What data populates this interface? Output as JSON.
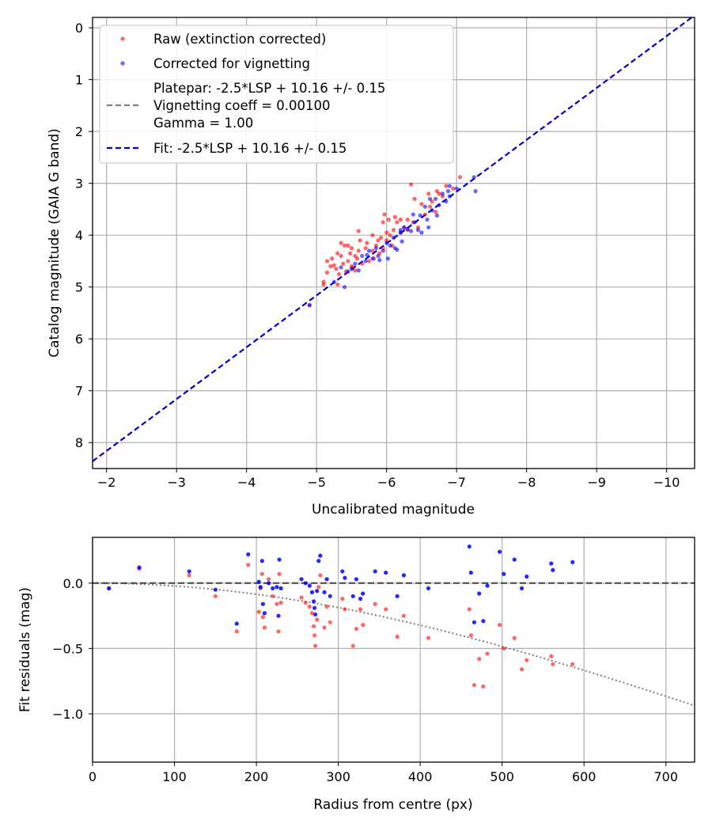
{
  "chart_data": [
    {
      "type": "scatter",
      "title": "",
      "xlabel": "Uncalibrated magnitude",
      "ylabel": "Catalog magnitude (GAIA G band)",
      "xlim": [
        -1.8,
        -10.4
      ],
      "ylim": [
        8.5,
        -0.2
      ],
      "x_inverted": true,
      "y_inverted": true,
      "xticks": [
        -2,
        -3,
        -4,
        -5,
        -6,
        -7,
        -8,
        -9,
        -10
      ],
      "xtick_labels": [
        "−2",
        "−3",
        "−4",
        "−5",
        "−6",
        "−7",
        "−8",
        "−9",
        "−10"
      ],
      "yticks": [
        0,
        1,
        2,
        3,
        4,
        5,
        6,
        7,
        8
      ],
      "ytick_labels": [
        "0",
        "1",
        "2",
        "3",
        "4",
        "5",
        "6",
        "7",
        "8"
      ],
      "grid": true,
      "legend_position": "top-left",
      "legend": [
        {
          "label": "Raw (extinction corrected)",
          "kind": "marker",
          "color": "#ff0000"
        },
        {
          "label": "Corrected for vignetting",
          "kind": "marker",
          "color": "#0000ff"
        },
        {
          "label": "Platepar: -2.5*LSP + 10.16 +/- 0.15",
          "label2": "Vignetting coeff = 0.00100",
          "label3": "Gamma = 1.00",
          "kind": "dashed-line",
          "color": "#808080"
        },
        {
          "label": "Fit: -2.5*LSP + 10.16 +/- 0.15",
          "kind": "dashed-line",
          "color": "#0000cc"
        }
      ],
      "fit_line": {
        "slope": 1.0,
        "intercept": 10.16
      },
      "series": [
        {
          "name": "Raw (extinction corrected)",
          "color": "#ff0000",
          "points": [
            [
              -4.9,
              5.35
            ],
            [
              -5.1,
              4.95
            ],
            [
              -5.1,
              4.9
            ],
            [
              -5.15,
              4.72
            ],
            [
              -5.15,
              4.5
            ],
            [
              -5.2,
              4.6
            ],
            [
              -5.22,
              4.45
            ],
            [
              -5.25,
              4.58
            ],
            [
              -5.28,
              4.65
            ],
            [
              -5.3,
              4.35
            ],
            [
              -5.3,
              4.95
            ],
            [
              -5.32,
              4.75
            ],
            [
              -5.35,
              4.15
            ],
            [
              -5.35,
              4.4
            ],
            [
              -5.38,
              4.55
            ],
            [
              -5.4,
              4.2
            ],
            [
              -5.42,
              4.7
            ],
            [
              -5.45,
              4.2
            ],
            [
              -5.45,
              4.5
            ],
            [
              -5.48,
              4.35
            ],
            [
              -5.5,
              4.25
            ],
            [
              -5.5,
              4.6
            ],
            [
              -5.52,
              4.62
            ],
            [
              -5.55,
              4.4
            ],
            [
              -5.58,
              4.45
            ],
            [
              -5.6,
              3.92
            ],
            [
              -5.6,
              4.3
            ],
            [
              -5.62,
              4.1
            ],
            [
              -5.65,
              4.55
            ],
            [
              -5.7,
              4.25
            ],
            [
              -5.72,
              4.15
            ],
            [
              -5.75,
              4.5
            ],
            [
              -5.8,
              4.0
            ],
            [
              -5.8,
              4.3
            ],
            [
              -5.82,
              4.45
            ],
            [
              -5.85,
              4.2
            ],
            [
              -5.88,
              4.1
            ],
            [
              -5.9,
              4.35
            ],
            [
              -5.92,
              4.05
            ],
            [
              -5.95,
              3.75
            ],
            [
              -5.95,
              4.25
            ],
            [
              -5.97,
              3.6
            ],
            [
              -6.0,
              3.95
            ],
            [
              -6.0,
              4.1
            ],
            [
              -6.03,
              3.7
            ],
            [
              -6.05,
              4.0
            ],
            [
              -6.08,
              4.2
            ],
            [
              -6.1,
              3.9
            ],
            [
              -6.12,
              3.65
            ],
            [
              -6.15,
              3.75
            ],
            [
              -6.2,
              3.7
            ],
            [
              -6.2,
              3.95
            ],
            [
              -6.25,
              3.85
            ],
            [
              -6.3,
              3.7
            ],
            [
              -6.3,
              3.9
            ],
            [
              -6.35,
              3.02
            ],
            [
              -6.38,
              3.75
            ],
            [
              -6.4,
              3.3
            ],
            [
              -6.45,
              3.85
            ],
            [
              -6.5,
              3.4
            ],
            [
              -6.55,
              3.6
            ],
            [
              -6.6,
              3.2
            ],
            [
              -6.62,
              3.45
            ],
            [
              -6.65,
              3.35
            ],
            [
              -6.7,
              3.55
            ],
            [
              -6.72,
              3.15
            ],
            [
              -6.75,
              3.2
            ],
            [
              -6.8,
              3.25
            ],
            [
              -6.85,
              3.05
            ],
            [
              -6.95,
              3.1
            ],
            [
              -7.05,
              2.88
            ],
            [
              -5.55,
              4.68
            ]
          ]
        },
        {
          "name": "Corrected for vignetting",
          "color": "#0000ff",
          "points": [
            [
              -4.9,
              5.35
            ],
            [
              -5.25,
              4.9
            ],
            [
              -5.35,
              4.62
            ],
            [
              -5.4,
              5.0
            ],
            [
              -5.45,
              4.7
            ],
            [
              -5.5,
              4.65
            ],
            [
              -5.55,
              4.55
            ],
            [
              -5.6,
              4.68
            ],
            [
              -5.65,
              4.4
            ],
            [
              -5.7,
              4.5
            ],
            [
              -5.72,
              4.38
            ],
            [
              -5.75,
              4.3
            ],
            [
              -5.8,
              4.45
            ],
            [
              -5.85,
              4.25
            ],
            [
              -5.88,
              4.4
            ],
            [
              -5.9,
              4.48
            ],
            [
              -5.95,
              4.3
            ],
            [
              -6.0,
              4.15
            ],
            [
              -6.02,
              4.45
            ],
            [
              -6.05,
              4.2
            ],
            [
              -6.1,
              4.05
            ],
            [
              -6.12,
              4.25
            ],
            [
              -6.15,
              4.28
            ],
            [
              -6.2,
              3.9
            ],
            [
              -6.22,
              4.12
            ],
            [
              -6.25,
              3.85
            ],
            [
              -6.3,
              3.88
            ],
            [
              -6.35,
              3.92
            ],
            [
              -6.38,
              3.6
            ],
            [
              -6.4,
              3.75
            ],
            [
              -6.45,
              3.9
            ],
            [
              -6.48,
              3.62
            ],
            [
              -6.5,
              3.95
            ],
            [
              -6.55,
              3.45
            ],
            [
              -6.58,
              3.7
            ],
            [
              -6.6,
              3.85
            ],
            [
              -6.62,
              3.3
            ],
            [
              -6.65,
              3.52
            ],
            [
              -6.7,
              3.3
            ],
            [
              -6.72,
              3.62
            ],
            [
              -6.75,
              3.42
            ],
            [
              -6.8,
              3.2
            ],
            [
              -6.85,
              3.35
            ],
            [
              -6.88,
              3.15
            ],
            [
              -6.9,
              3.25
            ],
            [
              -7.0,
              3.1
            ],
            [
              -7.25,
              2.88
            ],
            [
              -7.27,
              3.15
            ],
            [
              -6.9,
              3.05
            ],
            [
              -6.2,
              3.95
            ]
          ]
        }
      ]
    },
    {
      "type": "scatter",
      "title": "",
      "xlabel": "Radius from centre (px)",
      "ylabel": "Fit residuals (mag)",
      "xlim": [
        0,
        735
      ],
      "ylim": [
        -1.37,
        0.35
      ],
      "xticks": [
        0,
        100,
        200,
        300,
        400,
        500,
        600,
        700
      ],
      "xtick_labels": [
        "0",
        "100",
        "200",
        "300",
        "400",
        "500",
        "600",
        "700"
      ],
      "yticks": [
        0.0,
        -0.5,
        -1.0
      ],
      "ytick_labels": [
        "0.0",
        "−0.5",
        "−1.0"
      ],
      "grid": true,
      "zero_line": {
        "value": 0.0,
        "color": "#404040"
      },
      "vignetting_curve": {
        "coefficient": 0.001,
        "color": "#808080",
        "style": "dotted"
      },
      "series": [
        {
          "name": "Raw (extinction corrected)",
          "color": "#ff0000",
          "points": [
            [
              20,
              -0.04
            ],
            [
              57,
              0.11
            ],
            [
              118,
              0.06
            ],
            [
              150,
              -0.1
            ],
            [
              176,
              -0.37
            ],
            [
              190,
              0.14
            ],
            [
              203,
              -0.22
            ],
            [
              205,
              -0.04
            ],
            [
              207,
              0.07
            ],
            [
              208,
              -0.26
            ],
            [
              210,
              -0.34
            ],
            [
              215,
              0.03
            ],
            [
              220,
              -0.1
            ],
            [
              225,
              -0.16
            ],
            [
              227,
              -0.37
            ],
            [
              228,
              0.07
            ],
            [
              230,
              -0.15
            ],
            [
              255,
              -0.11
            ],
            [
              260,
              -0.15
            ],
            [
              265,
              -0.18
            ],
            [
              268,
              -0.23
            ],
            [
              270,
              -0.33
            ],
            [
              271,
              -0.4
            ],
            [
              272,
              -0.48
            ],
            [
              274,
              -0.28
            ],
            [
              276,
              -0.03
            ],
            [
              278,
              0.06
            ],
            [
              283,
              -0.34
            ],
            [
              286,
              -0.18
            ],
            [
              290,
              -0.3
            ],
            [
              305,
              -0.12
            ],
            [
              308,
              -0.2
            ],
            [
              318,
              -0.48
            ],
            [
              322,
              -0.35
            ],
            [
              327,
              -0.2
            ],
            [
              330,
              -0.32
            ],
            [
              345,
              -0.16
            ],
            [
              358,
              -0.2
            ],
            [
              372,
              -0.41
            ],
            [
              380,
              -0.25
            ],
            [
              410,
              -0.42
            ],
            [
              460,
              -0.2
            ],
            [
              462,
              -0.4
            ],
            [
              466,
              -0.78
            ],
            [
              472,
              -0.58
            ],
            [
              477,
              -0.79
            ],
            [
              482,
              -0.54
            ],
            [
              497,
              -0.32
            ],
            [
              502,
              -0.5
            ],
            [
              515,
              -0.42
            ],
            [
              524,
              -0.66
            ],
            [
              530,
              -0.59
            ],
            [
              560,
              -0.56
            ],
            [
              562,
              -0.62
            ],
            [
              586,
              -0.62
            ]
          ]
        },
        {
          "name": "Corrected for vignetting",
          "color": "#0000ff",
          "points": [
            [
              20,
              -0.04
            ],
            [
              57,
              0.12
            ],
            [
              118,
              0.09
            ],
            [
              150,
              -0.05
            ],
            [
              176,
              -0.31
            ],
            [
              190,
              0.22
            ],
            [
              203,
              0.01
            ],
            [
              205,
              -0.03
            ],
            [
              207,
              0.17
            ],
            [
              208,
              -0.16
            ],
            [
              210,
              -0.23
            ],
            [
              215,
              0.0
            ],
            [
              220,
              -0.04
            ],
            [
              225,
              -0.03
            ],
            [
              227,
              -0.25
            ],
            [
              228,
              0.18
            ],
            [
              230,
              -0.04
            ],
            [
              255,
              0.03
            ],
            [
              260,
              0.0
            ],
            [
              265,
              -0.02
            ],
            [
              268,
              -0.07
            ],
            [
              270,
              -0.14
            ],
            [
              271,
              -0.19
            ],
            [
              272,
              -0.24
            ],
            [
              274,
              -0.06
            ],
            [
              276,
              0.17
            ],
            [
              278,
              0.21
            ],
            [
              283,
              -0.07
            ],
            [
              286,
              0.03
            ],
            [
              290,
              -0.1
            ],
            [
              305,
              0.09
            ],
            [
              308,
              0.04
            ],
            [
              318,
              -0.1
            ],
            [
              322,
              0.03
            ],
            [
              327,
              -0.12
            ],
            [
              330,
              -0.08
            ],
            [
              345,
              0.09
            ],
            [
              358,
              0.08
            ],
            [
              372,
              -0.1
            ],
            [
              380,
              0.06
            ],
            [
              410,
              -0.04
            ],
            [
              460,
              0.28
            ],
            [
              462,
              0.08
            ],
            [
              466,
              -0.3
            ],
            [
              472,
              -0.08
            ],
            [
              477,
              -0.29
            ],
            [
              482,
              -0.02
            ],
            [
              497,
              0.24
            ],
            [
              502,
              0.07
            ],
            [
              515,
              0.18
            ],
            [
              524,
              -0.04
            ],
            [
              530,
              0.05
            ],
            [
              560,
              0.15
            ],
            [
              562,
              0.1
            ],
            [
              586,
              0.16
            ]
          ]
        }
      ]
    }
  ]
}
